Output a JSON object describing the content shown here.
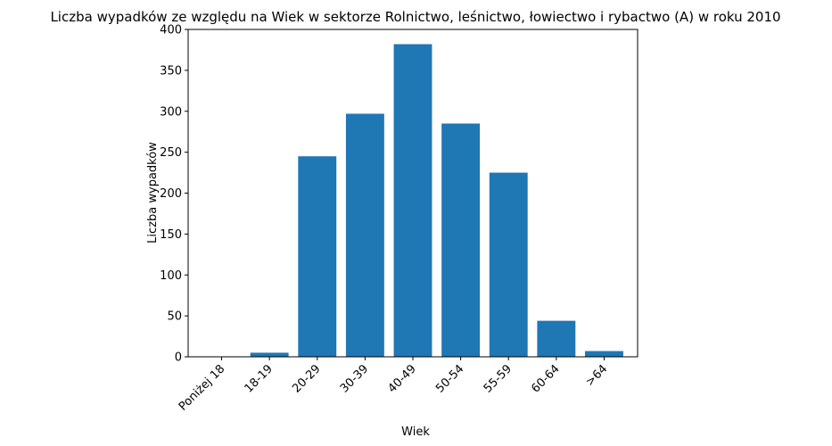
{
  "chart_data": {
    "type": "bar",
    "title": "Liczba wypadków ze względu na Wiek w sektorze Rolnictwo, leśnictwo, łowiectwo i rybactwo (A) w roku 2010",
    "xlabel": "Wiek",
    "ylabel": "Liczba wypadków",
    "categories": [
      "Poniżej 18",
      "18-19",
      "20-29",
      "30-39",
      "40-49",
      "50-54",
      "55-59",
      "60-64",
      ">64"
    ],
    "values": [
      0,
      5,
      245,
      297,
      382,
      285,
      225,
      44,
      7
    ],
    "ylim": [
      0,
      400
    ],
    "yticks": [
      0,
      50,
      100,
      150,
      200,
      250,
      300,
      350,
      400
    ],
    "bar_color": "#1f77b4",
    "grid": false,
    "legend": "none"
  }
}
